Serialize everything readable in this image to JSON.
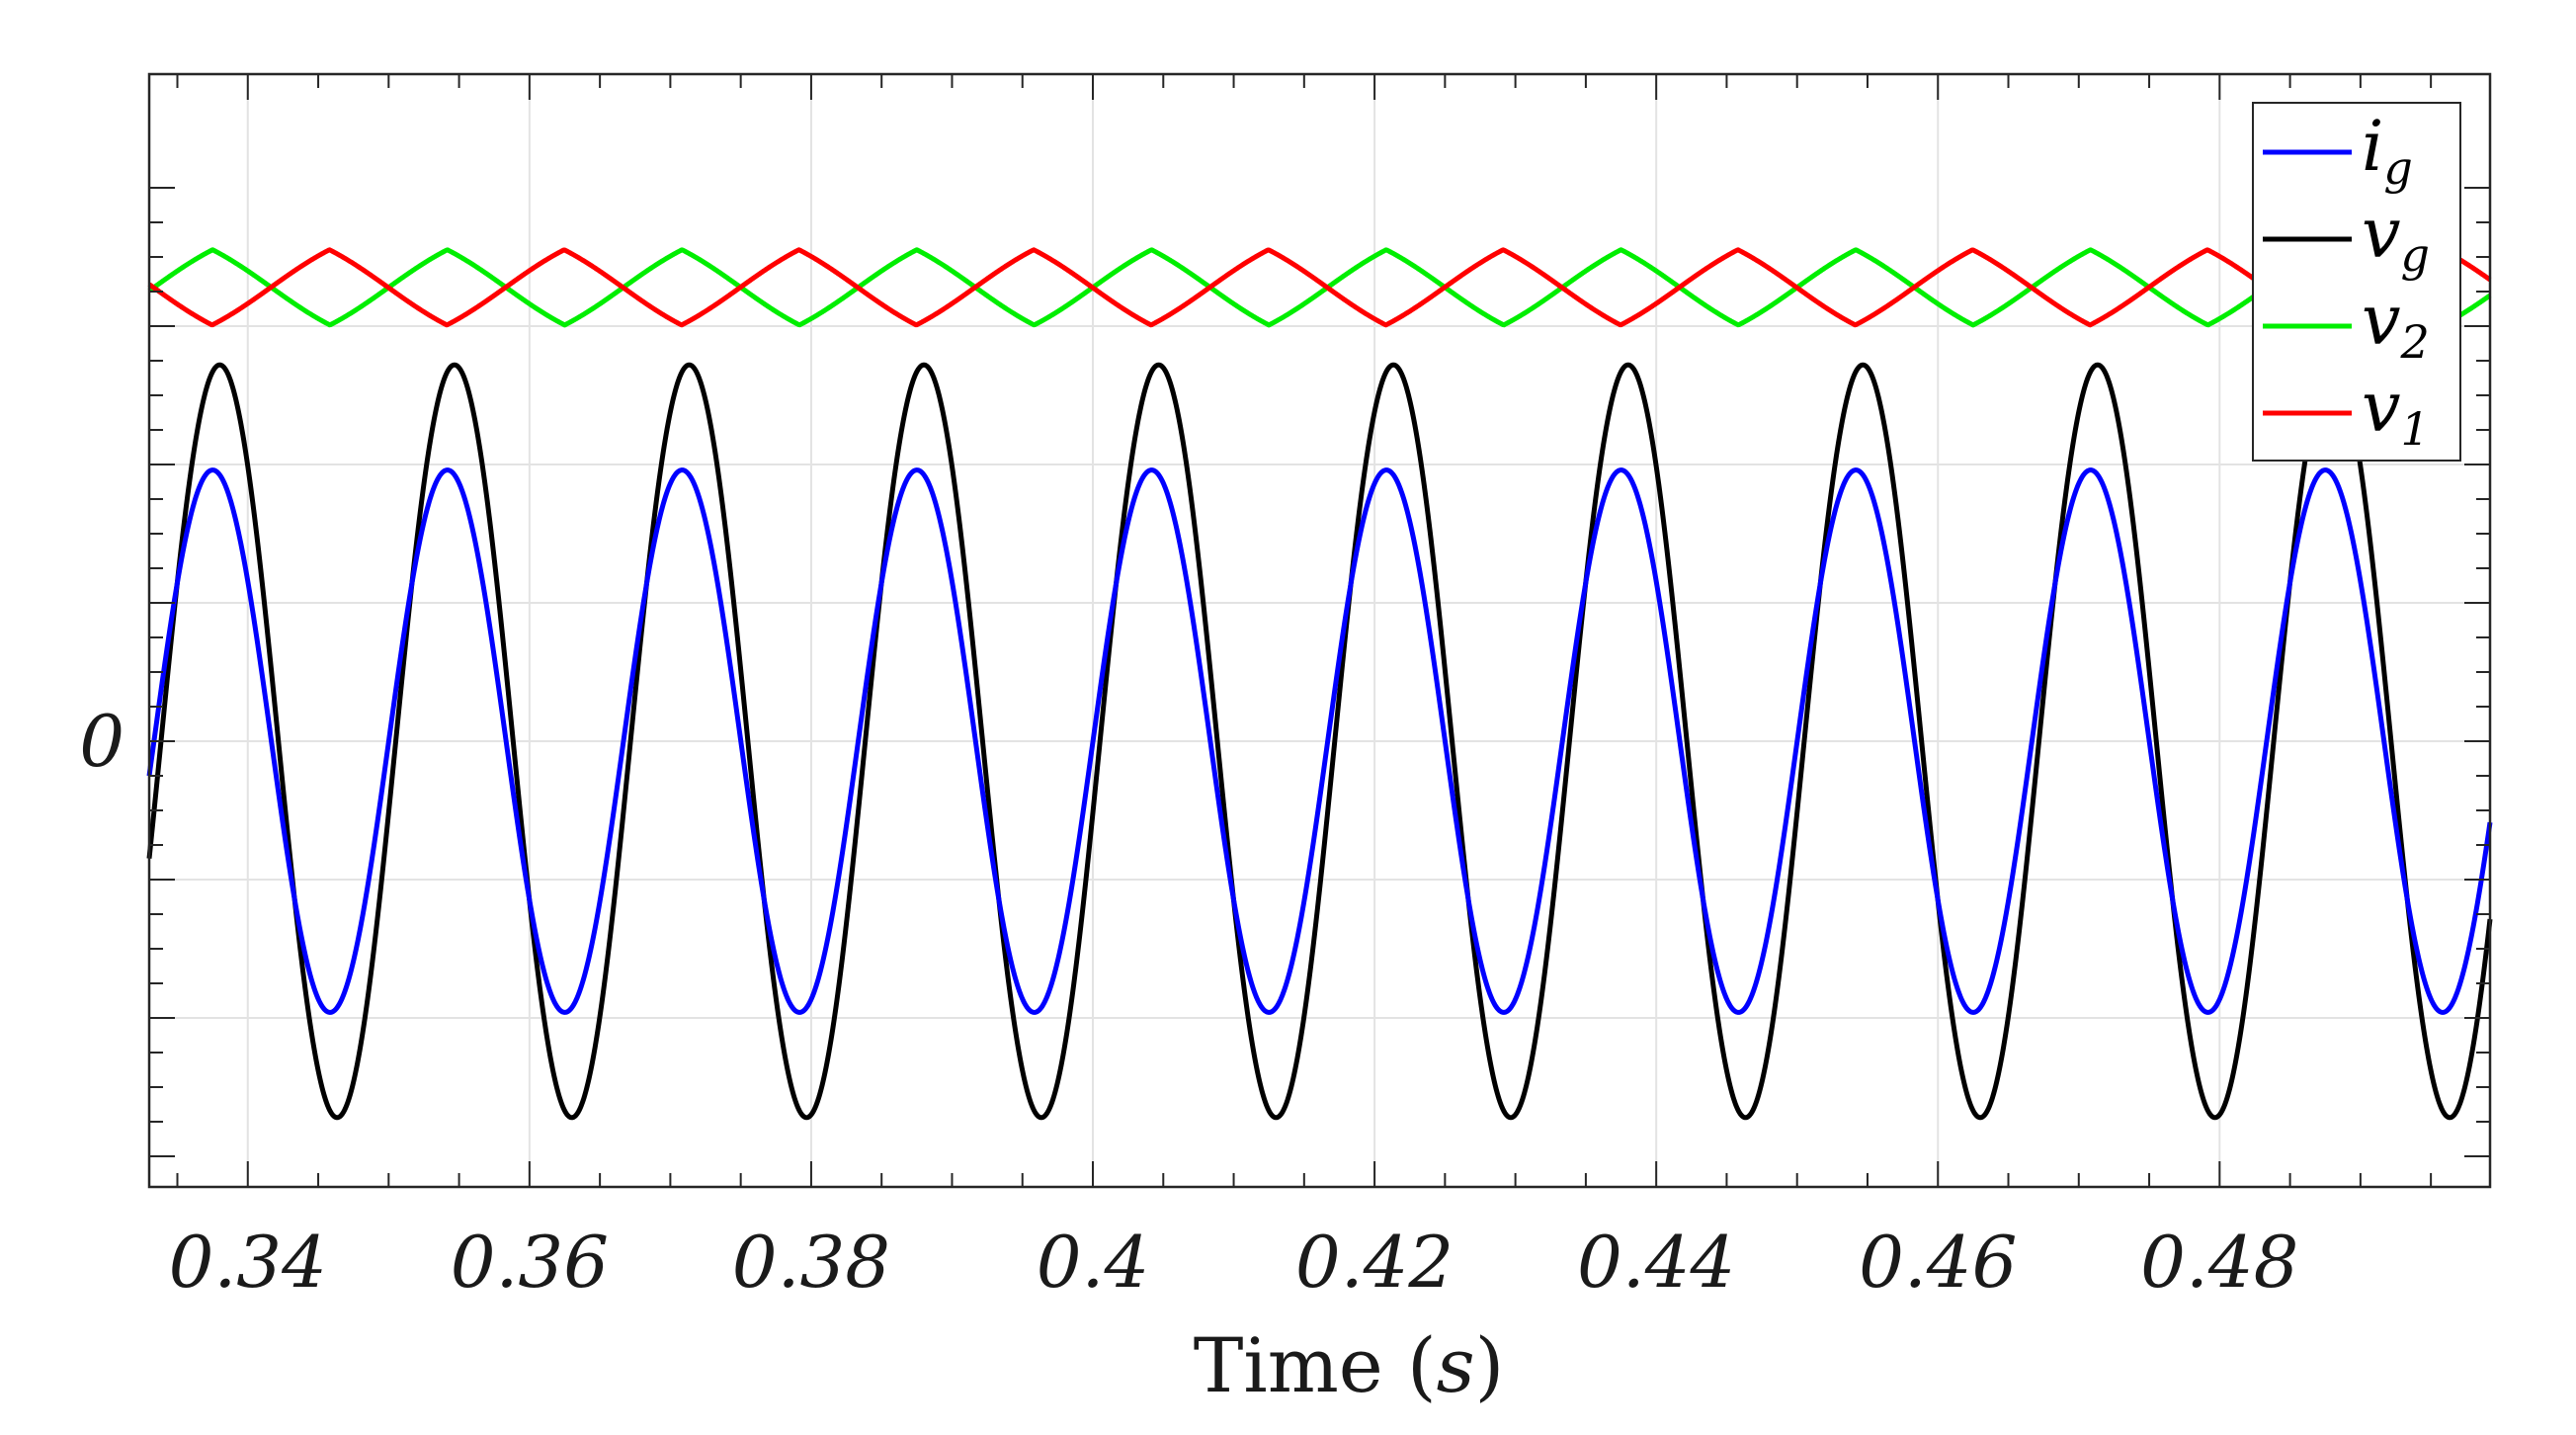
{
  "chart_data": {
    "type": "line",
    "title": "",
    "xlabel": "Time",
    "xlabel_unit": "s",
    "ylabel": "",
    "xlim": [
      0.333,
      0.4992
    ],
    "ylim": [
      -1.0,
      1.0
    ],
    "xticks": [
      0.34,
      0.36,
      0.38,
      0.4,
      0.42,
      0.44,
      0.46,
      0.48
    ],
    "xtick_labels": [
      "0.34",
      "0.36",
      "0.38",
      "0.4",
      "0.42",
      "0.44",
      "0.46",
      "0.48"
    ],
    "yticks": [
      0
    ],
    "ytick_labels": [
      "0"
    ],
    "grid": true,
    "legend_position": "top-right",
    "frequency_hz": 60,
    "series": [
      {
        "name": "i_g",
        "label_main": "i",
        "label_sub": "g",
        "color": "#0000ff",
        "kind": "sine",
        "offset": 0.0,
        "amplitude": 0.49,
        "phase_zero_time": 0.33334
      },
      {
        "name": "v_g",
        "label_main": "v",
        "label_sub": "g",
        "color": "#000000",
        "kind": "sine",
        "offset": 0.0,
        "amplitude": 0.68,
        "phase_zero_time": 0.33384
      },
      {
        "name": "v_2",
        "label_main": "v",
        "label_sub": "2",
        "color": "#00ee00",
        "kind": "triangle",
        "offset": 0.82,
        "amplitude": 0.068,
        "peak_time": 0.3375
      },
      {
        "name": "v_1",
        "label_main": "v",
        "label_sub": "1",
        "color": "#ff0000",
        "kind": "triangle",
        "offset": 0.82,
        "amplitude": 0.068,
        "peak_time": 0.3458
      }
    ]
  }
}
